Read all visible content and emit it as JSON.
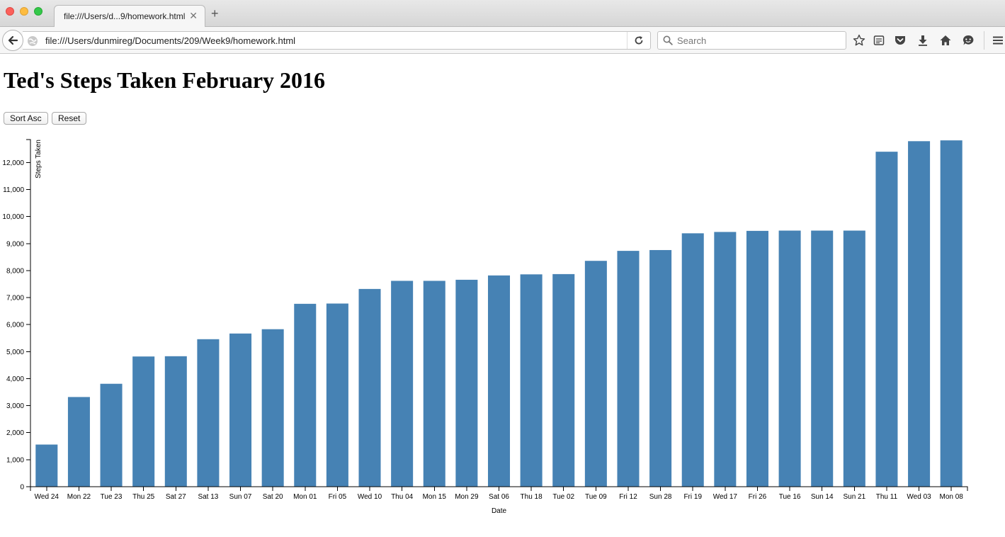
{
  "browser": {
    "tab_title": "file:///Users/d...9/homework.html",
    "tab_close": "✕",
    "new_tab": "+",
    "url": "file:///Users/dunmireg/Documents/209/Week9/homework.html",
    "search_placeholder": "Search"
  },
  "page": {
    "title": "Ted's Steps Taken February 2016",
    "sort_button": "Sort Asc",
    "reset_button": "Reset"
  },
  "colors": {
    "bar": "#4682b4",
    "axis": "#000000"
  },
  "icons": [
    "back-arrow-icon",
    "globe-icon",
    "reload-icon",
    "search-icon",
    "star-icon",
    "reading-list-icon",
    "pocket-icon",
    "download-icon",
    "home-icon",
    "chat-icon",
    "menu-icon"
  ],
  "chart_data": {
    "type": "bar",
    "xlabel": "Date",
    "ylabel": "Steps Taken",
    "ylim": [
      0,
      12850
    ],
    "yticks": [
      0,
      1000,
      2000,
      3000,
      4000,
      5000,
      6000,
      7000,
      8000,
      9000,
      10000,
      11000,
      12000
    ],
    "ytick_labels": [
      "0",
      "1,000",
      "2,000",
      "3,000",
      "4,000",
      "5,000",
      "6,000",
      "7,000",
      "8,000",
      "9,000",
      "10,000",
      "11,000",
      "12,000"
    ],
    "grid": false,
    "categories": [
      "Wed 24",
      "Mon 22",
      "Tue 23",
      "Thu 25",
      "Sat 27",
      "Sat 13",
      "Sun 07",
      "Sat 20",
      "Mon 01",
      "Fri 05",
      "Wed 10",
      "Thu 04",
      "Mon 15",
      "Mon 29",
      "Sat 06",
      "Thu 18",
      "Tue 02",
      "Tue 09",
      "Fri 12",
      "Sun 28",
      "Fri 19",
      "Wed 17",
      "Fri 26",
      "Tue 16",
      "Sun 14",
      "Sun 21",
      "Thu 11",
      "Wed 03",
      "Mon 08"
    ],
    "values": [
      1560,
      3320,
      3810,
      4820,
      4830,
      5460,
      5670,
      5830,
      6770,
      6780,
      7320,
      7620,
      7620,
      7660,
      7820,
      7860,
      7870,
      8360,
      8730,
      8760,
      9380,
      9430,
      9470,
      9480,
      9480,
      9480,
      12400,
      12790,
      12820
    ]
  }
}
